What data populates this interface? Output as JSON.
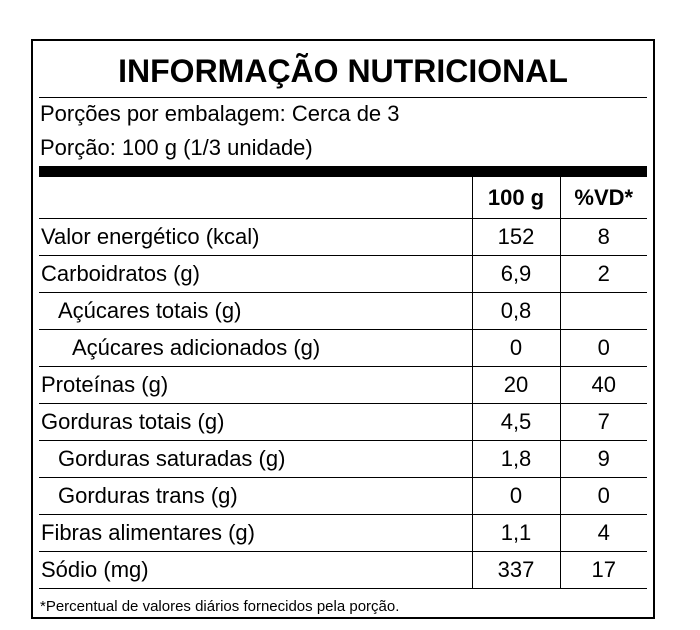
{
  "label": {
    "title": "INFORMAÇÃO NUTRICIONAL",
    "servings_per_package": "Porções por embalagem: Cerca de 3",
    "serving_size": "Porção: 100 g (1/3 unidade)",
    "columns": {
      "amount": "100 g",
      "daily_value": "%VD*"
    },
    "rows": [
      {
        "name": "Valor energético (kcal)",
        "amount": "152",
        "dv": "8",
        "indent": 0
      },
      {
        "name": "Carboidratos (g)",
        "amount": "6,9",
        "dv": "2",
        "indent": 0
      },
      {
        "name": "Açúcares totais (g)",
        "amount": "0,8",
        "dv": "",
        "indent": 1
      },
      {
        "name": "Açúcares adicionados (g)",
        "amount": "0",
        "dv": "0",
        "indent": 2
      },
      {
        "name": "Proteínas (g)",
        "amount": "20",
        "dv": "40",
        "indent": 0
      },
      {
        "name": "Gorduras totais (g)",
        "amount": "4,5",
        "dv": "7",
        "indent": 0
      },
      {
        "name": "Gorduras saturadas (g)",
        "amount": "1,8",
        "dv": "9",
        "indent": 1
      },
      {
        "name": "Gorduras trans (g)",
        "amount": "0",
        "dv": "0",
        "indent": 1
      },
      {
        "name": "Fibras alimentares (g)",
        "amount": "1,1",
        "dv": "4",
        "indent": 0
      },
      {
        "name": "Sódio (mg)",
        "amount": "337",
        "dv": "17",
        "indent": 0
      }
    ],
    "footnote": "*Percentual de valores diários fornecidos pela porção."
  }
}
